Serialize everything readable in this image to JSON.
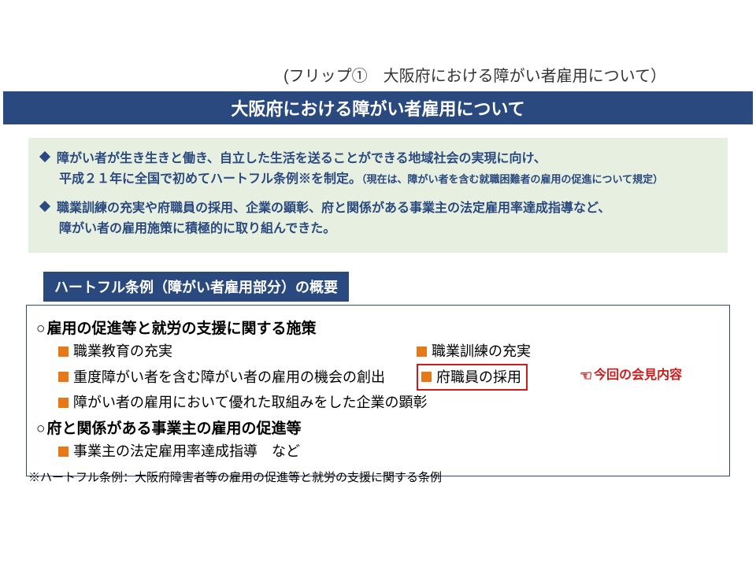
{
  "flipLabel": "(フリップ①　大阪府における障がい者雇用について）",
  "title": "大阪府における障がい者雇用について",
  "intro": {
    "p1_line1": "障がい者が生き生きと働き、自立した生活を送ることができる地域社会の実現に向け、",
    "p1_line2a": "平成２１年に全国で初めてハートフル条例※を制定。",
    "p1_line2b": "（現在は、障がい者を含む就職困難者の雇用の促進について規定）",
    "p2_line1": "職業訓練の充実や府職員の採用、企業の顕彰、府と関係がある事業主の法定雇用率達成指導など、",
    "p2_line2": "障がい者の雇用施策に積極的に取り組んできた。"
  },
  "sectionChip": "ハートフル条例（障がい者雇用部分）の概要",
  "policy": {
    "h1": "雇用の促進等と就労の支援に関する施策",
    "r1a": "職業教育の充実",
    "r1b": "職業訓練の充実",
    "r2a": "重度障がい者を含む障がい者の雇用の機会の創出",
    "r2b": "府職員の採用",
    "r3": "障がい者の雇用において優れた取組みをした企業の顕彰",
    "h2": "府と関係がある事業主の雇用の促進等",
    "r4": "事業主の法定雇用率達成指導　など",
    "callout": "今回の会見内容"
  },
  "footnote": "※ハートフル条例：大阪府障害者等の雇用の促進等と就労の支援に関する条例",
  "colors": {
    "band": "#2a4a7f",
    "introBg": "#e7efe0",
    "square": "#e67817",
    "red": "#d11a1a"
  }
}
